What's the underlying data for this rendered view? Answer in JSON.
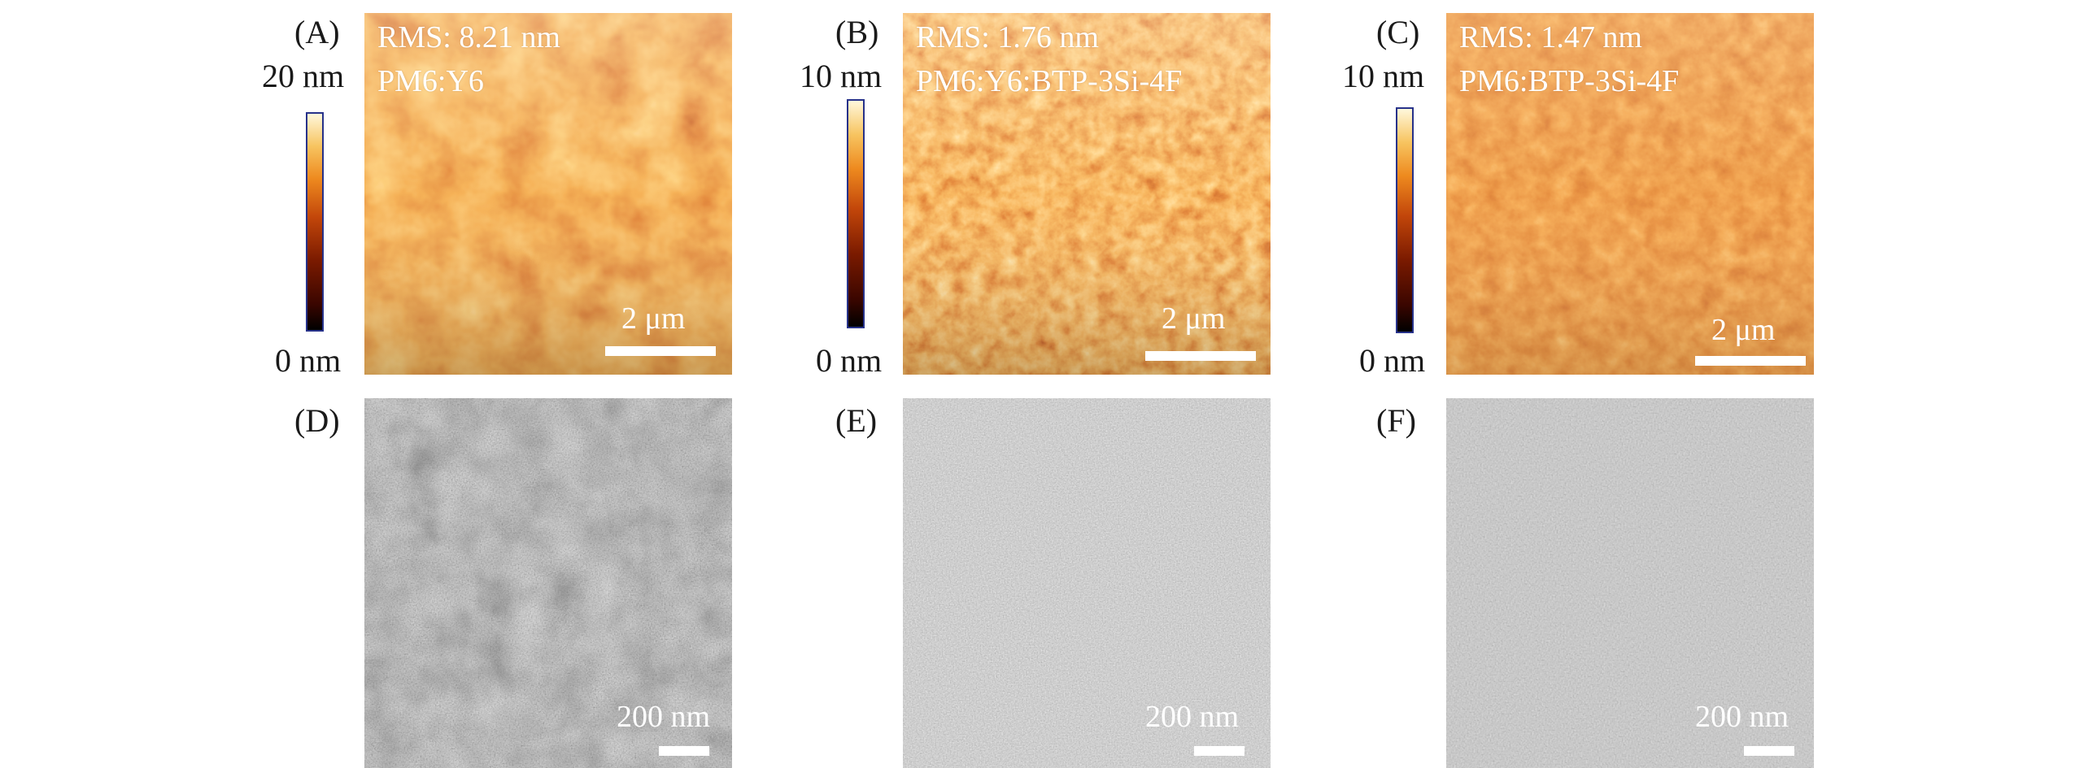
{
  "panels": [
    {
      "letter": "(A)",
      "rms": "RMS: 8.21 nm",
      "blend": "PM6:Y6",
      "scale": "2 μm",
      "cbar_top": "20 nm",
      "cbar_bottom": "0 nm"
    },
    {
      "letter": "(B)",
      "rms": "RMS: 1.76 nm",
      "blend": "PM6:Y6:BTP-3Si-4F",
      "scale": "2 μm",
      "cbar_top": "10 nm",
      "cbar_bottom": "0 nm"
    },
    {
      "letter": "(C)",
      "rms": "RMS: 1.47 nm",
      "blend": "PM6:BTP-3Si-4F",
      "scale": "2 μm",
      "cbar_top": "10 nm",
      "cbar_bottom": "0 nm"
    }
  ],
  "tem_panels": [
    {
      "letter": "(D)",
      "scale": "200 nm"
    },
    {
      "letter": "(E)",
      "scale": "200 nm"
    },
    {
      "letter": "(F)",
      "scale": "200 nm"
    }
  ],
  "colors": {
    "colorbar_border": "#27328a",
    "afm_base": "#c24a12",
    "afm_highlight": "#f7b33c",
    "afm_shadow": "#6e1606",
    "tem_base": "#8c8c8c"
  }
}
